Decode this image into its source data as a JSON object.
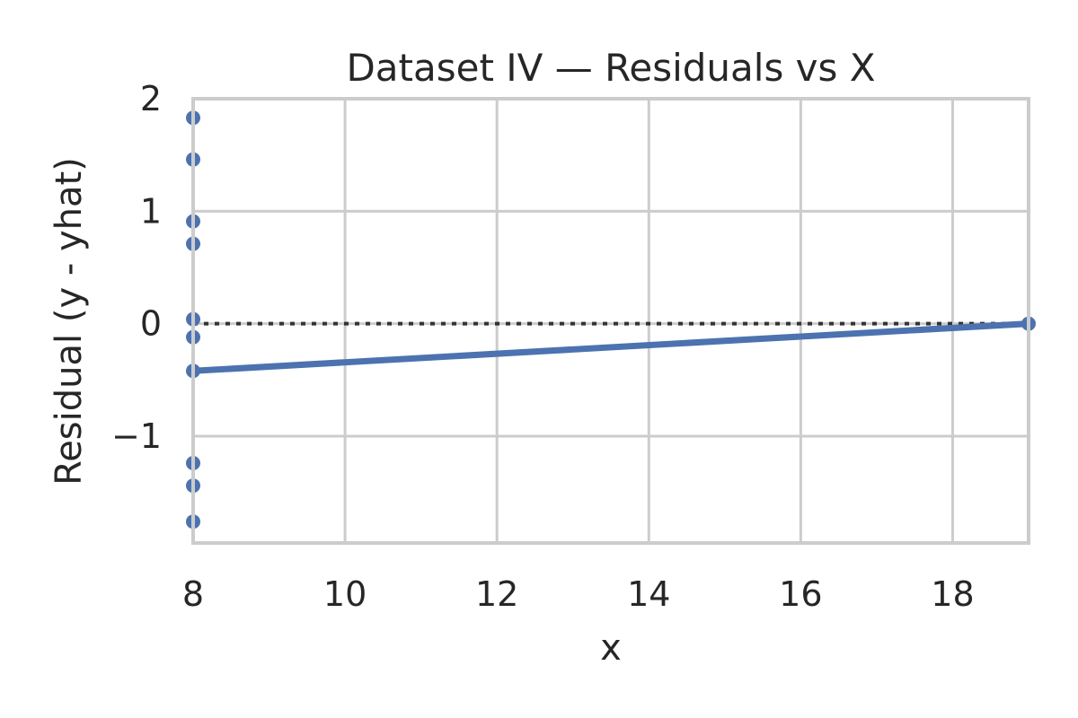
{
  "chart_data": {
    "type": "scatter",
    "title": "Dataset IV — Residuals vs X",
    "xlabel": "x",
    "ylabel": "Residual (y - yhat)",
    "xlim": [
      8,
      19
    ],
    "ylim": [
      -1.95,
      2.0
    ],
    "xticks": [
      8,
      10,
      12,
      14,
      16,
      18
    ],
    "yticks": [
      -1,
      0,
      1,
      2
    ],
    "ytick_labels": [
      "−1",
      "0",
      "1",
      "2"
    ],
    "grid": true,
    "reference_line": {
      "y": 0,
      "style": "dotted",
      "color": "#333333"
    },
    "series": [
      {
        "kind": "points",
        "color": "#4c72b0",
        "x": [
          8,
          8,
          8,
          8,
          8,
          8,
          8,
          8,
          8,
          8,
          19
        ],
        "y": [
          1.83,
          1.46,
          0.91,
          0.71,
          0.04,
          -0.12,
          -0.42,
          -1.24,
          -1.44,
          -1.76,
          0.0
        ]
      },
      {
        "kind": "line",
        "color": "#4c72b0",
        "x": [
          8,
          19
        ],
        "y": [
          -0.42,
          0.0
        ]
      }
    ]
  }
}
